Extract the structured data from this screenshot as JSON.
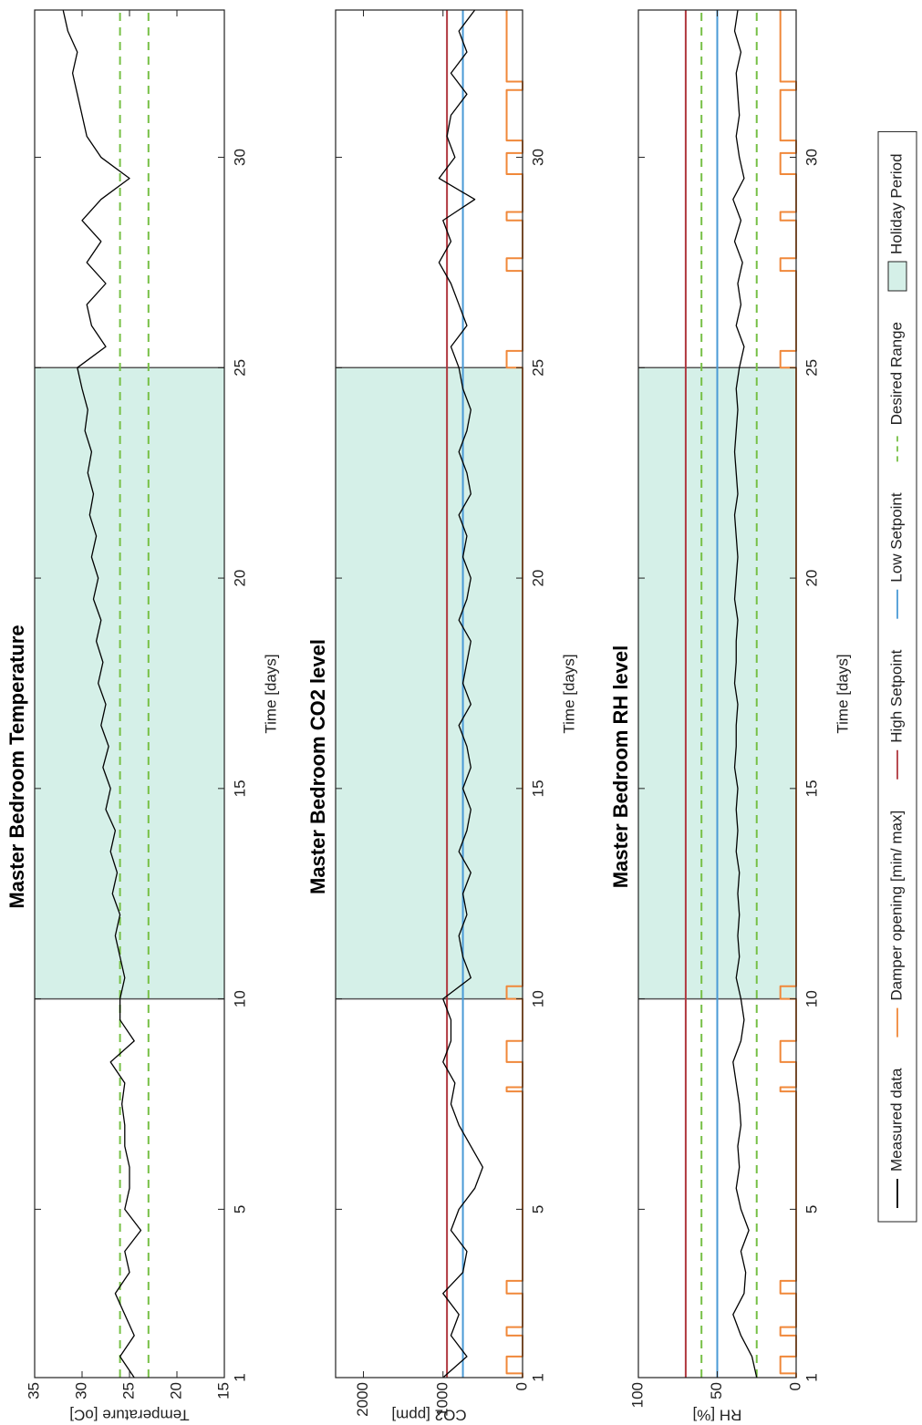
{
  "chart_data": [
    {
      "type": "line",
      "title": "Master Bedroom Temperature",
      "x_label": "Time [days]",
      "y_label": "Temperature [oC]",
      "xlim": [
        1,
        33.5
      ],
      "xticks": [
        1,
        5,
        10,
        15,
        20,
        25,
        30
      ],
      "ylim": [
        15,
        35
      ],
      "yticks": [
        15,
        20,
        25,
        30,
        35
      ],
      "x": [
        1,
        1.5,
        2,
        2.5,
        3,
        3.5,
        4,
        4.5,
        5,
        5.5,
        6,
        6.5,
        7,
        7.5,
        8,
        8.5,
        9,
        9.5,
        10,
        10.5,
        11,
        11.5,
        12,
        12.5,
        13,
        13.5,
        14,
        14.5,
        15,
        15.5,
        16,
        16.5,
        17,
        17.5,
        18,
        18.5,
        19,
        19.5,
        20,
        20.5,
        21,
        21.5,
        22,
        22.5,
        23,
        23.5,
        24,
        24.5,
        25,
        25.5,
        26,
        26.5,
        27,
        27.5,
        28,
        28.5,
        29,
        29.5,
        30,
        30.5,
        31,
        31.5,
        32,
        32.5,
        33,
        33.5
      ],
      "series": [
        {
          "color": "#000000",
          "values": [
            24.5,
            26,
            24.5,
            25.5,
            26.5,
            25,
            25.5,
            23.8,
            25.5,
            25,
            25,
            25.5,
            25.5,
            25.8,
            25.5,
            27,
            24.5,
            26,
            26,
            25.5,
            26,
            26.5,
            26,
            26.8,
            26.3,
            27,
            26.5,
            27.5,
            27,
            27.8,
            27.2,
            28,
            27.5,
            28.3,
            27.8,
            28.5,
            28,
            28.8,
            28.3,
            29,
            28.5,
            29.2,
            28.8,
            29.4,
            29,
            29.7,
            29.4,
            30,
            30.5,
            27.5,
            29,
            29.5,
            27.5,
            29.5,
            28,
            30,
            28,
            25,
            28,
            29.5,
            30,
            30.5,
            31,
            30.5,
            31.5,
            32
          ]
        }
      ],
      "reference_lines": [
        {
          "color": "#77c046",
          "dashed": true,
          "values": [
            23,
            26
          ]
        }
      ],
      "holiday": {
        "x": [
          10,
          25
        ],
        "color": "#d5f0e8"
      }
    },
    {
      "type": "line",
      "title": "Master Bedroom CO2 level",
      "x_label": "Time [days]",
      "y_label": "CO2 [ppm]",
      "xlim": [
        1,
        33.5
      ],
      "xticks": [
        1,
        5,
        10,
        15,
        20,
        25,
        30
      ],
      "ylim": [
        0,
        2350
      ],
      "yticks": [
        0,
        1000,
        2000
      ],
      "x": [
        1,
        1.5,
        2,
        2.5,
        3,
        3.5,
        4,
        4.5,
        5,
        5.5,
        6,
        6.5,
        7,
        7.5,
        8,
        8.5,
        9,
        9.5,
        10,
        10.5,
        11,
        11.5,
        12,
        12.5,
        13,
        13.5,
        14,
        14.5,
        15,
        15.5,
        16,
        16.5,
        17,
        17.5,
        18,
        18.5,
        19,
        19.5,
        20,
        20.5,
        21,
        21.5,
        22,
        22.5,
        23,
        23.5,
        24,
        24.5,
        25,
        25.5,
        26,
        26.5,
        27,
        27.5,
        28,
        28.5,
        29,
        29.5,
        30,
        30.5,
        31,
        31.5,
        32,
        32.5,
        33,
        33.5
      ],
      "series": [
        {
          "color": "#000000",
          "values": [
            1000,
            700,
            900,
            800,
            1000,
            750,
            700,
            900,
            800,
            600,
            500,
            650,
            800,
            900,
            850,
            1000,
            900,
            900,
            1000,
            650,
            750,
            800,
            700,
            750,
            650,
            800,
            700,
            650,
            750,
            650,
            700,
            800,
            650,
            750,
            700,
            650,
            800,
            700,
            650,
            750,
            700,
            800,
            650,
            700,
            800,
            700,
            650,
            750,
            800,
            900,
            700,
            800,
            900,
            1050,
            900,
            1000,
            600,
            1050,
            850,
            950,
            900,
            700,
            900,
            700,
            800,
            600
          ]
        },
        {
          "color": "#f0883a",
          "x": [
            1,
            1.1,
            1.1,
            1.5,
            1.5,
            2.0,
            2.0,
            2.2,
            2.2,
            3.0,
            3.0,
            3.3,
            3.3,
            7.8,
            7.8,
            7.9,
            7.9,
            8.5,
            8.5,
            9.0,
            9.0,
            10.0,
            10.0,
            10.3,
            10.3,
            25.0,
            25.0,
            25.4,
            25.4,
            27.3,
            27.3,
            27.6,
            27.6,
            28.5,
            28.5,
            28.7,
            28.7,
            29.6,
            29.6,
            30.1,
            30.1,
            30.4,
            30.4,
            31.6,
            31.6,
            31.8,
            31.8,
            33.5
          ],
          "values": [
            0,
            0,
            200,
            200,
            0,
            0,
            200,
            200,
            0,
            0,
            200,
            200,
            0,
            0,
            200,
            200,
            0,
            0,
            200,
            200,
            0,
            0,
            200,
            200,
            0,
            0,
            200,
            200,
            0,
            0,
            200,
            200,
            0,
            0,
            200,
            200,
            0,
            0,
            200,
            200,
            0,
            0,
            200,
            200,
            0,
            0,
            200,
            200
          ]
        }
      ],
      "reference_lines": [
        {
          "color": "#b0383f",
          "values": [
            950
          ]
        },
        {
          "color": "#4a9ad6",
          "values": [
            750
          ]
        }
      ],
      "holiday": {
        "x": [
          10,
          25
        ],
        "color": "#d5f0e8"
      }
    },
    {
      "type": "line",
      "title": "Master Bedroom RH level",
      "x_label": "Time [days]",
      "y_label": "RH [%]",
      "xlim": [
        1,
        33.5
      ],
      "xticks": [
        1,
        5,
        10,
        15,
        20,
        25,
        30
      ],
      "ylim": [
        0,
        100
      ],
      "yticks": [
        0,
        50,
        100
      ],
      "x": [
        1,
        1.5,
        2,
        2.5,
        3,
        3.5,
        4,
        4.5,
        5,
        5.5,
        6,
        6.5,
        7,
        7.5,
        8,
        8.5,
        9,
        9.5,
        10,
        10.5,
        11,
        11.5,
        12,
        12.5,
        13,
        13.5,
        14,
        14.5,
        15,
        15.5,
        16,
        16.5,
        17,
        17.5,
        18,
        18.5,
        19,
        19.5,
        20,
        20.5,
        21,
        21.5,
        22,
        22.5,
        23,
        23.5,
        24,
        24.5,
        25,
        25.5,
        26,
        26.5,
        27,
        27.5,
        28,
        28.5,
        29,
        29.5,
        30,
        30.5,
        31,
        31.5,
        32,
        32.5,
        33,
        33.5
      ],
      "series": [
        {
          "name": "Measured data",
          "color": "#000000",
          "values": [
            25,
            28,
            35,
            40,
            33,
            32,
            35,
            30,
            35,
            38,
            36,
            37,
            35,
            36,
            38,
            40,
            35,
            33,
            35,
            38,
            36,
            37,
            36,
            37,
            36,
            38,
            37,
            38,
            37,
            39,
            38,
            38,
            37,
            39,
            38,
            38,
            37,
            39,
            38,
            37,
            38,
            39,
            37,
            38,
            39,
            38,
            37,
            38,
            36,
            33,
            38,
            35,
            37,
            34,
            39,
            35,
            40,
            33,
            36,
            38,
            36,
            37,
            38,
            35,
            39,
            37
          ]
        },
        {
          "name": "Damper opening [min/ max]",
          "color": "#f0883a",
          "x": [
            1,
            1.1,
            1.1,
            1.5,
            1.5,
            2.0,
            2.0,
            2.2,
            2.2,
            3.0,
            3.0,
            3.3,
            3.3,
            7.8,
            7.8,
            7.9,
            7.9,
            8.5,
            8.5,
            9.0,
            9.0,
            10.0,
            10.0,
            10.3,
            10.3,
            25.0,
            25.0,
            25.4,
            25.4,
            27.3,
            27.3,
            27.6,
            27.6,
            28.5,
            28.5,
            28.7,
            28.7,
            29.6,
            29.6,
            30.1,
            30.1,
            30.4,
            30.4,
            31.6,
            31.6,
            31.8,
            31.8,
            33.5
          ],
          "values": [
            0,
            0,
            10,
            10,
            0,
            0,
            10,
            10,
            0,
            0,
            10,
            10,
            0,
            0,
            10,
            10,
            0,
            0,
            10,
            10,
            0,
            0,
            10,
            10,
            0,
            0,
            10,
            10,
            0,
            0,
            10,
            10,
            0,
            0,
            10,
            10,
            0,
            0,
            10,
            10,
            0,
            0,
            10,
            10,
            0,
            0,
            10,
            10
          ]
        }
      ],
      "reference_lines": [
        {
          "name": "High Setpoint",
          "color": "#b0383f",
          "values": [
            70
          ]
        },
        {
          "name": "Low Setpoint",
          "color": "#4a9ad6",
          "values": [
            50
          ]
        },
        {
          "name": "Desired Range",
          "color": "#77c046",
          "dashed": true,
          "values": [
            25,
            60
          ]
        }
      ],
      "holiday": {
        "name": "Holiday Period",
        "x": [
          10,
          25
        ],
        "color": "#d5f0e8"
      }
    }
  ]
}
